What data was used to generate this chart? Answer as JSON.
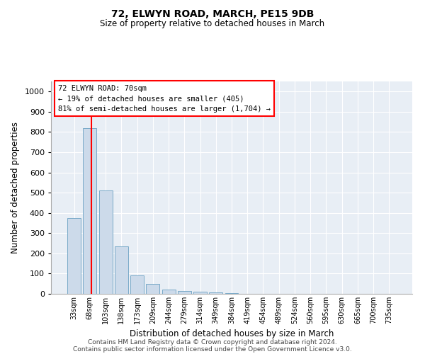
{
  "title1": "72, ELWYN ROAD, MARCH, PE15 9DB",
  "title2": "Size of property relative to detached houses in March",
  "xlabel": "Distribution of detached houses by size in March",
  "ylabel": "Number of detached properties",
  "bar_labels": [
    "33sqm",
    "68sqm",
    "103sqm",
    "138sqm",
    "173sqm",
    "209sqm",
    "244sqm",
    "279sqm",
    "314sqm",
    "349sqm",
    "384sqm",
    "419sqm",
    "454sqm",
    "489sqm",
    "524sqm",
    "560sqm",
    "595sqm",
    "630sqm",
    "665sqm",
    "700sqm",
    "735sqm"
  ],
  "bar_values": [
    375,
    820,
    510,
    235,
    90,
    50,
    20,
    15,
    12,
    8,
    5,
    0,
    0,
    0,
    0,
    0,
    0,
    0,
    0,
    0,
    0
  ],
  "bar_color": "#ccdaea",
  "bar_edgecolor": "#7aaac8",
  "ylim": [
    0,
    1050
  ],
  "yticks": [
    0,
    100,
    200,
    300,
    400,
    500,
    600,
    700,
    800,
    900,
    1000
  ],
  "red_line_x": 1.08,
  "annotation_line1": "72 ELWYN ROAD: 70sqm",
  "annotation_line2": "← 19% of detached houses are smaller (405)",
  "annotation_line3": "81% of semi-detached houses are larger (1,704) →",
  "footer1": "Contains HM Land Registry data © Crown copyright and database right 2024.",
  "footer2": "Contains public sector information licensed under the Open Government Licence v3.0.",
  "plot_bg_color": "#e8eef5",
  "grid_color": "#ffffff"
}
